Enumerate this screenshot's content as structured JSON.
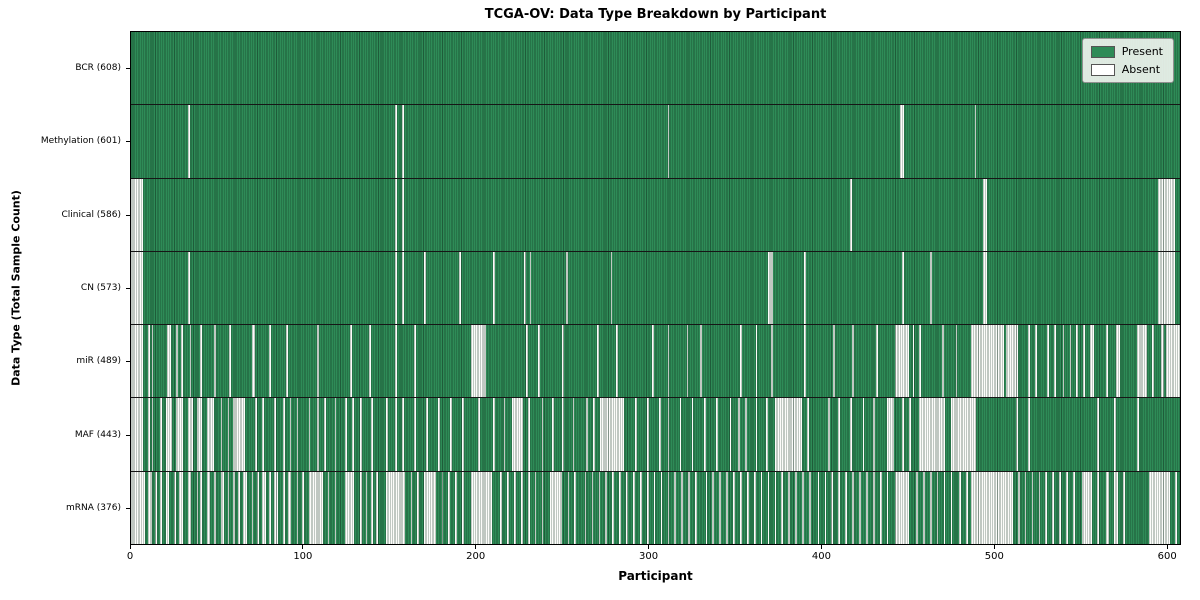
{
  "chart_data": {
    "type": "heatmap",
    "title": "TCGA-OV: Data Type Breakdown by Participant",
    "xlabel": "Participant",
    "ylabel": "Data Type (Total Sample Count)",
    "x_range": [
      0,
      608
    ],
    "n_participants": 608,
    "x_ticks": [
      0,
      100,
      200,
      300,
      400,
      500,
      600
    ],
    "grid": false,
    "legend_position": "upper right",
    "legend": [
      {
        "label": "Present",
        "color": "#2e8b57"
      },
      {
        "label": "Absent",
        "color": "#ffffff"
      }
    ],
    "encoding": "Each row is a data type; each of the 608 participant columns is Present (green) unless covered by an inclusive [start,end] interval in absent_ranges (white). Intervals estimated from pixels.",
    "rows": [
      {
        "name": "BCR",
        "label": "BCR (608)",
        "present_count": 608,
        "absent_ranges": []
      },
      {
        "name": "Methylation",
        "label": "Methylation (601)",
        "present_count": 601,
        "absent_ranges": [
          [
            33,
            33
          ],
          [
            153,
            153
          ],
          [
            157,
            157
          ],
          [
            311,
            311
          ],
          [
            446,
            447
          ],
          [
            489,
            489
          ]
        ]
      },
      {
        "name": "Clinical",
        "label": "Clinical (586)",
        "present_count": 586,
        "absent_ranges": [
          [
            0,
            6
          ],
          [
            153,
            153
          ],
          [
            157,
            157
          ],
          [
            417,
            417
          ],
          [
            494,
            495
          ],
          [
            595,
            604
          ]
        ]
      },
      {
        "name": "CN",
        "label": "CN (573)",
        "present_count": 573,
        "absent_ranges": [
          [
            0,
            6
          ],
          [
            33,
            33
          ],
          [
            153,
            153
          ],
          [
            157,
            157
          ],
          [
            170,
            170
          ],
          [
            190,
            190
          ],
          [
            210,
            210
          ],
          [
            228,
            228
          ],
          [
            231,
            231
          ],
          [
            252,
            252
          ],
          [
            278,
            278
          ],
          [
            369,
            371
          ],
          [
            390,
            390
          ],
          [
            447,
            447
          ],
          [
            463,
            463
          ],
          [
            494,
            495
          ],
          [
            595,
            604
          ]
        ]
      },
      {
        "name": "miR",
        "label": "miR (489)",
        "present_count": 489,
        "absent_ranges": [
          [
            0,
            6
          ],
          [
            10,
            10
          ],
          [
            12,
            12
          ],
          [
            21,
            22
          ],
          [
            26,
            26
          ],
          [
            29,
            29
          ],
          [
            34,
            34
          ],
          [
            40,
            40
          ],
          [
            48,
            48
          ],
          [
            57,
            57
          ],
          [
            70,
            71
          ],
          [
            80,
            80
          ],
          [
            90,
            90
          ],
          [
            108,
            108
          ],
          [
            127,
            127
          ],
          [
            138,
            138
          ],
          [
            153,
            153
          ],
          [
            164,
            164
          ],
          [
            197,
            205
          ],
          [
            229,
            229
          ],
          [
            236,
            236
          ],
          [
            250,
            250
          ],
          [
            270,
            270
          ],
          [
            281,
            281
          ],
          [
            302,
            302
          ],
          [
            311,
            311
          ],
          [
            322,
            322
          ],
          [
            330,
            330
          ],
          [
            353,
            353
          ],
          [
            362,
            362
          ],
          [
            371,
            371
          ],
          [
            390,
            390
          ],
          [
            407,
            407
          ],
          [
            418,
            418
          ],
          [
            432,
            432
          ],
          [
            443,
            450
          ],
          [
            453,
            453
          ],
          [
            457,
            457
          ],
          [
            470,
            470
          ],
          [
            478,
            478
          ],
          [
            487,
            505
          ],
          [
            507,
            513
          ],
          [
            520,
            520
          ],
          [
            524,
            524
          ],
          [
            531,
            531
          ],
          [
            535,
            535
          ],
          [
            540,
            540
          ],
          [
            544,
            544
          ],
          [
            548,
            548
          ],
          [
            552,
            552
          ],
          [
            556,
            557
          ],
          [
            565,
            565
          ],
          [
            571,
            572
          ],
          [
            583,
            588
          ],
          [
            592,
            592
          ],
          [
            597,
            598
          ],
          [
            600,
            607
          ]
        ]
      },
      {
        "name": "MAF",
        "label": "MAF (443)",
        "present_count": 443,
        "absent_ranges": [
          [
            0,
            6
          ],
          [
            10,
            10
          ],
          [
            12,
            12
          ],
          [
            17,
            17
          ],
          [
            20,
            23
          ],
          [
            26,
            29
          ],
          [
            33,
            35
          ],
          [
            38,
            40
          ],
          [
            44,
            47
          ],
          [
            52,
            52
          ],
          [
            56,
            56
          ],
          [
            59,
            65
          ],
          [
            72,
            72
          ],
          [
            76,
            76
          ],
          [
            83,
            83
          ],
          [
            88,
            88
          ],
          [
            92,
            92
          ],
          [
            96,
            96
          ],
          [
            103,
            103
          ],
          [
            108,
            108
          ],
          [
            112,
            112
          ],
          [
            118,
            118
          ],
          [
            124,
            124
          ],
          [
            128,
            128
          ],
          [
            133,
            133
          ],
          [
            139,
            139
          ],
          [
            148,
            148
          ],
          [
            153,
            153
          ],
          [
            157,
            157
          ],
          [
            164,
            164
          ],
          [
            171,
            171
          ],
          [
            178,
            178
          ],
          [
            185,
            185
          ],
          [
            192,
            192
          ],
          [
            201,
            201
          ],
          [
            210,
            210
          ],
          [
            216,
            216
          ],
          [
            221,
            226
          ],
          [
            230,
            230
          ],
          [
            238,
            238
          ],
          [
            244,
            244
          ],
          [
            250,
            250
          ],
          [
            256,
            256
          ],
          [
            264,
            264
          ],
          [
            268,
            268
          ],
          [
            272,
            285
          ],
          [
            292,
            292
          ],
          [
            299,
            299
          ],
          [
            306,
            306
          ],
          [
            311,
            311
          ],
          [
            318,
            318
          ],
          [
            325,
            325
          ],
          [
            332,
            332
          ],
          [
            339,
            339
          ],
          [
            347,
            347
          ],
          [
            352,
            352
          ],
          [
            356,
            356
          ],
          [
            362,
            362
          ],
          [
            368,
            368
          ],
          [
            373,
            388
          ],
          [
            392,
            392
          ],
          [
            404,
            404
          ],
          [
            410,
            410
          ],
          [
            417,
            417
          ],
          [
            424,
            424
          ],
          [
            430,
            430
          ],
          [
            438,
            441
          ],
          [
            447,
            447
          ],
          [
            451,
            451
          ],
          [
            457,
            471
          ],
          [
            475,
            489
          ],
          [
            513,
            513
          ],
          [
            520,
            520
          ],
          [
            560,
            560
          ],
          [
            570,
            570
          ],
          [
            583,
            583
          ]
        ]
      },
      {
        "name": "mRNA",
        "label": "mRNA (376)",
        "present_count": 376,
        "absent_ranges": [
          [
            0,
            7
          ],
          [
            10,
            11
          ],
          [
            14,
            14
          ],
          [
            17,
            17
          ],
          [
            20,
            21
          ],
          [
            25,
            25
          ],
          [
            28,
            29
          ],
          [
            33,
            34
          ],
          [
            38,
            38
          ],
          [
            40,
            40
          ],
          [
            44,
            45
          ],
          [
            48,
            48
          ],
          [
            52,
            53
          ],
          [
            56,
            56
          ],
          [
            59,
            59
          ],
          [
            62,
            62
          ],
          [
            65,
            66
          ],
          [
            70,
            70
          ],
          [
            73,
            73
          ],
          [
            76,
            77
          ],
          [
            80,
            80
          ],
          [
            83,
            84
          ],
          [
            88,
            88
          ],
          [
            91,
            92
          ],
          [
            96,
            96
          ],
          [
            99,
            99
          ],
          [
            103,
            110
          ],
          [
            114,
            114
          ],
          [
            118,
            118
          ],
          [
            124,
            128
          ],
          [
            133,
            133
          ],
          [
            136,
            136
          ],
          [
            139,
            139
          ],
          [
            142,
            142
          ],
          [
            148,
            158
          ],
          [
            162,
            162
          ],
          [
            166,
            166
          ],
          [
            170,
            176
          ],
          [
            180,
            180
          ],
          [
            184,
            184
          ],
          [
            188,
            188
          ],
          [
            192,
            192
          ],
          [
            197,
            208
          ],
          [
            214,
            214
          ],
          [
            218,
            218
          ],
          [
            222,
            222
          ],
          [
            226,
            226
          ],
          [
            230,
            230
          ],
          [
            234,
            234
          ],
          [
            238,
            238
          ],
          [
            243,
            249
          ],
          [
            253,
            253
          ],
          [
            257,
            257
          ],
          [
            263,
            263
          ],
          [
            267,
            267
          ],
          [
            271,
            271
          ],
          [
            275,
            275
          ],
          [
            279,
            279
          ],
          [
            283,
            283
          ],
          [
            287,
            287
          ],
          [
            291,
            291
          ],
          [
            295,
            295
          ],
          [
            299,
            299
          ],
          [
            303,
            303
          ],
          [
            307,
            307
          ],
          [
            311,
            311
          ],
          [
            315,
            315
          ],
          [
            319,
            319
          ],
          [
            323,
            323
          ],
          [
            327,
            327
          ],
          [
            333,
            333
          ],
          [
            337,
            337
          ],
          [
            341,
            341
          ],
          [
            345,
            345
          ],
          [
            349,
            349
          ],
          [
            353,
            353
          ],
          [
            357,
            357
          ],
          [
            361,
            361
          ],
          [
            365,
            365
          ],
          [
            369,
            369
          ],
          [
            373,
            373
          ],
          [
            377,
            377
          ],
          [
            381,
            381
          ],
          [
            385,
            385
          ],
          [
            389,
            389
          ],
          [
            393,
            393
          ],
          [
            398,
            398
          ],
          [
            402,
            402
          ],
          [
            406,
            406
          ],
          [
            410,
            410
          ],
          [
            414,
            414
          ],
          [
            418,
            418
          ],
          [
            422,
            422
          ],
          [
            426,
            426
          ],
          [
            430,
            430
          ],
          [
            434,
            434
          ],
          [
            438,
            438
          ],
          [
            443,
            450
          ],
          [
            455,
            455
          ],
          [
            459,
            459
          ],
          [
            463,
            463
          ],
          [
            467,
            467
          ],
          [
            471,
            471
          ],
          [
            475,
            475
          ],
          [
            480,
            480
          ],
          [
            484,
            484
          ],
          [
            487,
            510
          ],
          [
            514,
            514
          ],
          [
            518,
            518
          ],
          [
            522,
            522
          ],
          [
            526,
            526
          ],
          [
            530,
            530
          ],
          [
            534,
            534
          ],
          [
            538,
            538
          ],
          [
            542,
            542
          ],
          [
            546,
            546
          ],
          [
            551,
            556
          ],
          [
            560,
            560
          ],
          [
            565,
            566
          ],
          [
            570,
            571
          ],
          [
            575,
            575
          ],
          [
            590,
            601
          ],
          [
            605,
            605
          ]
        ]
      }
    ],
    "colors": {
      "present": "#2e8b57",
      "present_edge": "#16492e",
      "absent": "#fcfcfa",
      "row_separator": "#161616",
      "legend_bg": "#eef3ee"
    }
  }
}
